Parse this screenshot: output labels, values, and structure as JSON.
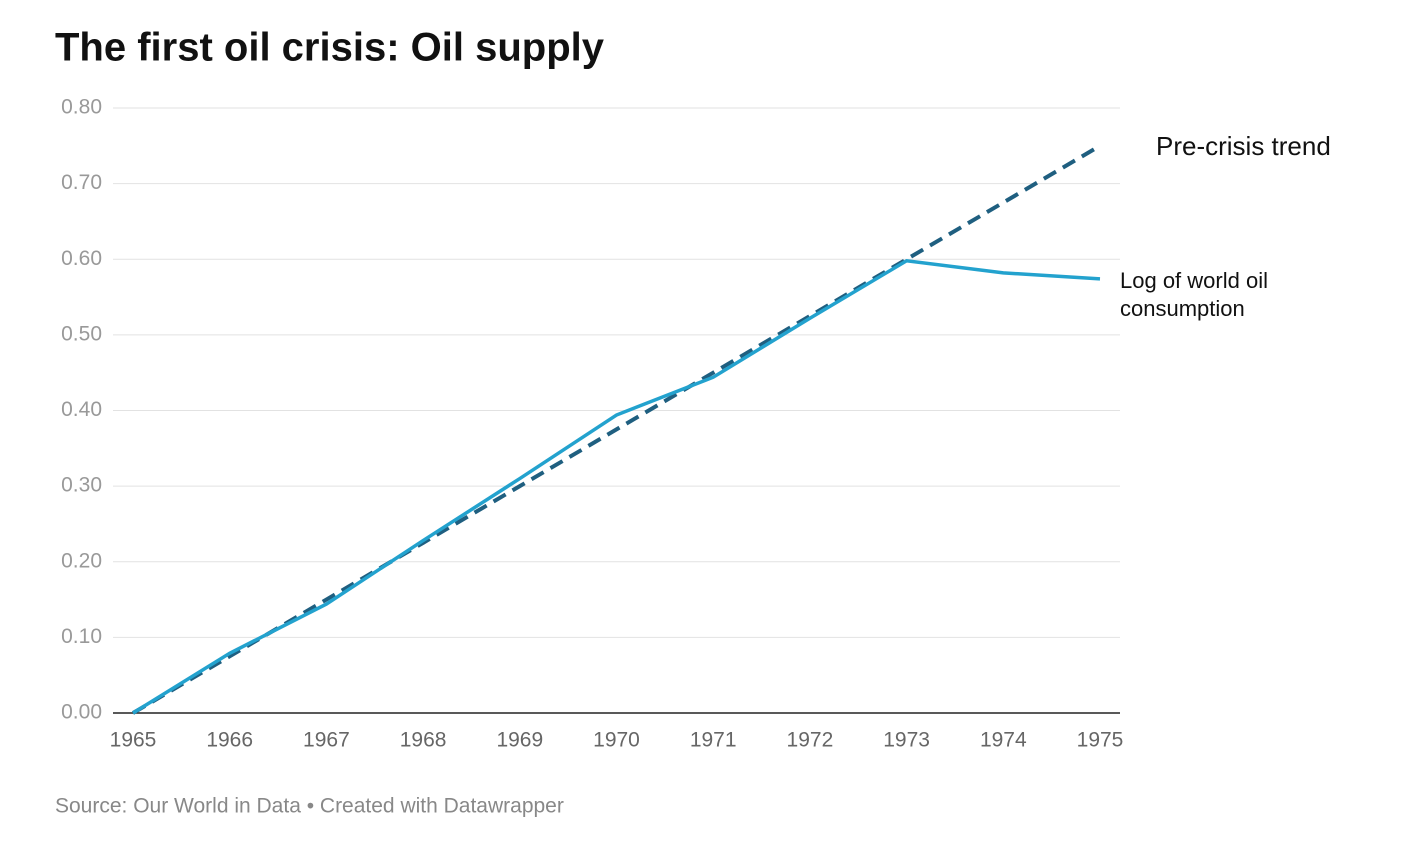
{
  "chart_data": {
    "type": "line",
    "title": "The first oil crisis: Oil supply",
    "source": "Source: Our World in Data • Created with Datawrapper",
    "x": [
      1965,
      1966,
      1967,
      1968,
      1969,
      1970,
      1971,
      1972,
      1973,
      1974,
      1975
    ],
    "series": [
      {
        "name": "Log of world oil consumption",
        "color": "#23a2ce",
        "dashed": false,
        "values": [
          0,
          0.079,
          0.144,
          0.228,
          0.31,
          0.394,
          0.444,
          0.522,
          0.598,
          0.582,
          0.574
        ]
      },
      {
        "name": "Pre-crisis trend",
        "color": "#1f5f80",
        "dashed": true,
        "values": [
          0,
          0.075,
          0.15,
          0.225,
          0.3,
          0.375,
          0.45,
          0.525,
          0.6,
          0.675,
          0.75
        ]
      }
    ],
    "xlim": [
      1965,
      1975
    ],
    "xticks": [
      1965,
      1966,
      1967,
      1968,
      1969,
      1970,
      1971,
      1972,
      1973,
      1974,
      1975
    ],
    "ylim": [
      0,
      0.8
    ],
    "yticks": [
      {
        "value": 0,
        "label": "0.00"
      },
      {
        "value": 0.1,
        "label": "0.10"
      },
      {
        "value": 0.2,
        "label": "0.20"
      },
      {
        "value": 0.3,
        "label": "0.30"
      },
      {
        "value": 0.4,
        "label": "0.40"
      },
      {
        "value": 0.5,
        "label": "0.50"
      },
      {
        "value": 0.6,
        "label": "0.60"
      },
      {
        "value": 0.7,
        "label": "0.70"
      },
      {
        "value": 0.8,
        "label": "0.80"
      }
    ],
    "grid": true
  }
}
